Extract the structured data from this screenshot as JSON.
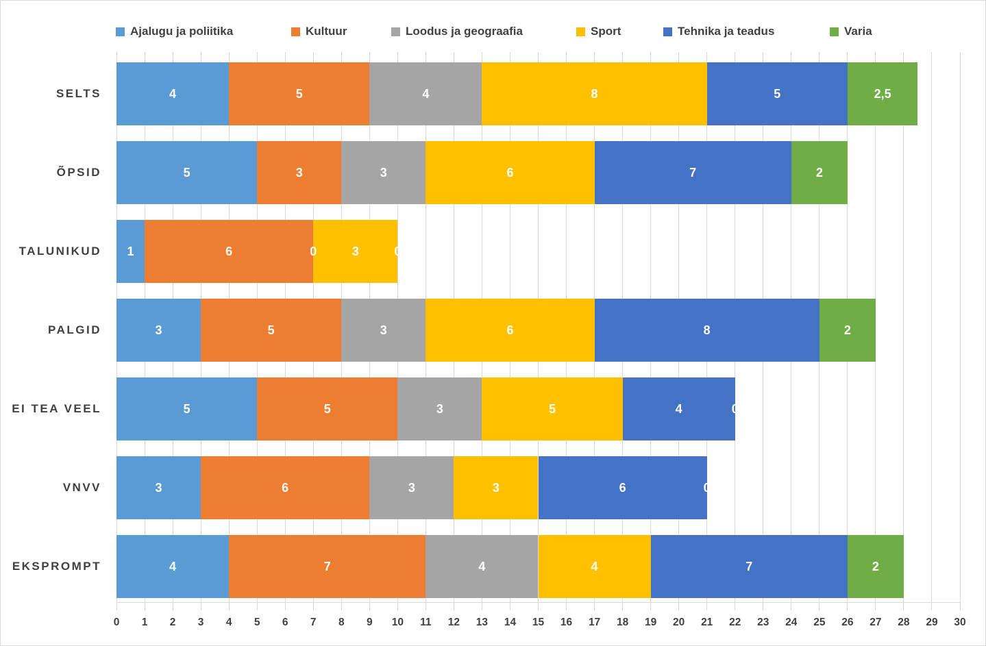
{
  "chart_data": {
    "type": "bar",
    "variant": "horizontal-stacked",
    "title": "",
    "categories": [
      "SELTS",
      "ÕPSID",
      "TALUNIKUD",
      "PALGID",
      "EI TEA VEEL",
      "VNVV",
      "EKSPROMPT"
    ],
    "series": [
      {
        "name": "Ajalugu ja poliitika",
        "color": "#5B9BD5",
        "values": [
          4,
          5,
          1,
          3,
          5,
          3,
          4
        ],
        "labels": [
          "4",
          "5",
          "1",
          "3",
          "5",
          "3",
          "4"
        ]
      },
      {
        "name": "Kultuur",
        "color": "#ED7D31",
        "values": [
          5,
          3,
          6,
          5,
          5,
          6,
          7
        ],
        "labels": [
          "5",
          "3",
          "6",
          "5",
          "5",
          "6",
          "7"
        ]
      },
      {
        "name": "Loodus ja geograafia",
        "color": "#A5A5A5",
        "values": [
          4,
          3,
          0,
          3,
          3,
          3,
          4
        ],
        "labels": [
          "4",
          "3",
          "0",
          "3",
          "3",
          "3",
          "4"
        ]
      },
      {
        "name": "Sport",
        "color": "#FFC000",
        "values": [
          8,
          6,
          3,
          6,
          5,
          3,
          4
        ],
        "labels": [
          "8",
          "6",
          "3",
          "6",
          "5",
          "3",
          "4"
        ]
      },
      {
        "name": "Tehnika ja teadus",
        "color": "#4472C4",
        "values": [
          5,
          7,
          0,
          8,
          4,
          6,
          7
        ],
        "labels": [
          "5",
          "7",
          "0",
          "8",
          "4",
          "6",
          "7"
        ]
      },
      {
        "name": "Varia",
        "color": "#70AD47",
        "values": [
          2.5,
          2,
          0,
          2,
          0,
          0,
          2
        ],
        "labels": [
          "2,5",
          "2",
          "",
          "2",
          "0",
          "0",
          "2"
        ]
      }
    ],
    "x_axis": {
      "min": 0,
      "max": 30,
      "step": 1,
      "tick_labels": [
        "0",
        "1",
        "2",
        "3",
        "4",
        "5",
        "6",
        "7",
        "8",
        "9",
        "10",
        "11",
        "12",
        "13",
        "14",
        "15",
        "16",
        "17",
        "18",
        "19",
        "20",
        "21",
        "22",
        "23",
        "24",
        "25",
        "26",
        "27",
        "28",
        "29",
        "30"
      ]
    },
    "legend_position": "top",
    "grid": true,
    "style": {
      "gridline_color": "#D9D9D9",
      "axis_text_color": "#404040",
      "data_label_color": "#FFFFFF",
      "background": "#FFFFFF"
    }
  }
}
